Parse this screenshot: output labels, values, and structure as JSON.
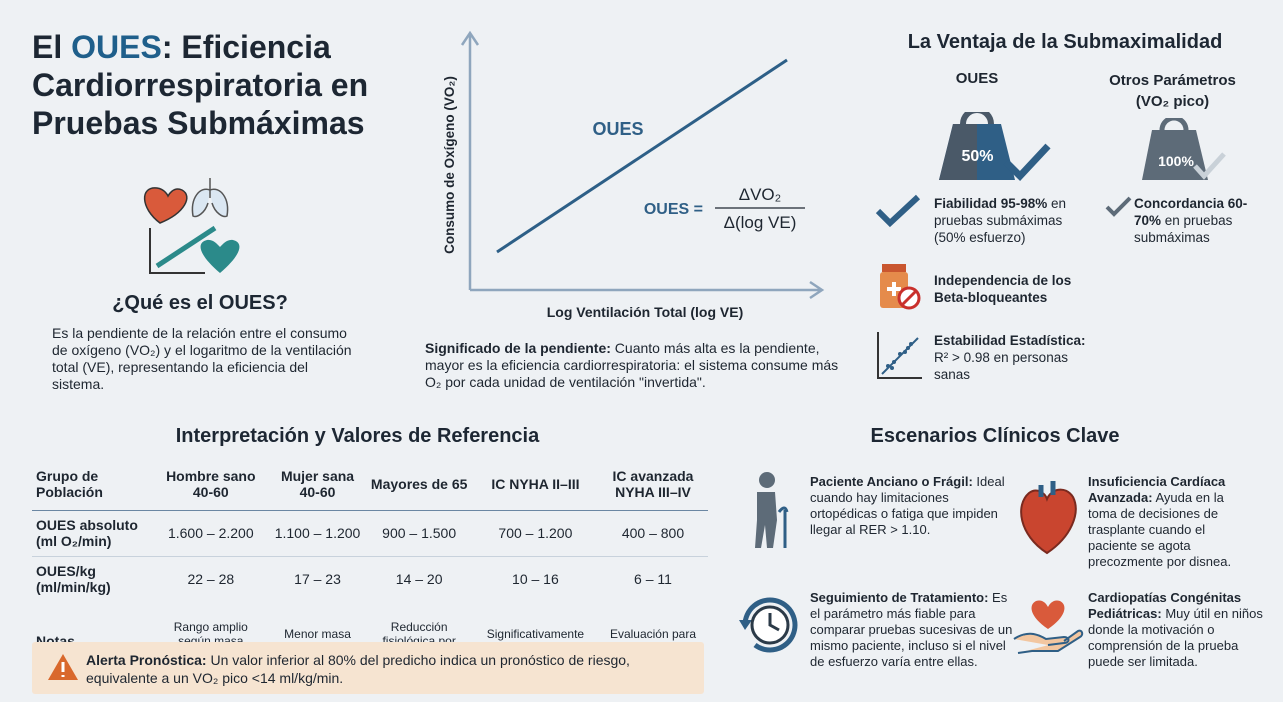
{
  "header": {
    "title_start": "El ",
    "title_highlight": "OUES",
    "title_end": ": Eficiencia Cardiorrespiratoria en Pruebas Submáximas"
  },
  "definition": {
    "heading": "¿Qué es el OUES?",
    "text": "Es la pendiente de la relación entre el consumo de oxígeno (VO₂) y el logaritmo de la ventilación total (VE), representando la eficiencia del sistema."
  },
  "graph": {
    "y_label": "Consumo de Oxígeno (VO₂)",
    "x_label": "Log Ventilación Total (log VE)",
    "line_label": "OUES",
    "formula_lhs": "OUES =",
    "formula_numerator": "ΔVO₂",
    "formula_denominator": "Δ(log VE)"
  },
  "slope_note": {
    "bold": "Significado de la pendiente:",
    "text": " Cuanto más alta es la pendiente, mayor es la eficiencia cardiorrespiratoria: el sistema consume más O₂ por cada unidad de ventilación \"invertida\"."
  },
  "advantage": {
    "title": "La Ventaja de la Submaximalidad",
    "columns": [
      {
        "heading": "OUES",
        "badge": "50%",
        "bold": "Fiabilidad 95-98%",
        "text": " en pruebas submáximas (50% esfuerzo)"
      },
      {
        "heading": "Otros Parámetros (VO₂ pico)",
        "badge": "100%",
        "bold": "Concordancia 60-70%",
        "text": " en pruebas submáximas"
      }
    ],
    "items": [
      {
        "bold": "Independencia",
        "text": " de los Beta-bloqueantes"
      },
      {
        "bold": "Estabilidad Estadística:",
        "text": " R² > 0.98 en personas sanas"
      }
    ]
  },
  "table": {
    "title": "Interpretación y Valores de Referencia",
    "headers": [
      "Grupo de Población",
      "Hombre sano 40-60",
      "Mujer sana 40-60",
      "Mayores de 65",
      "IC NYHA II–III",
      "IC avanzada NYHA III–IV"
    ],
    "rows": [
      [
        "OUES absoluto (ml O₂/min)",
        "1.600 – 2.200",
        "1.100 – 1.200",
        "900 – 1.500",
        "700 – 1.200",
        "400 – 800"
      ],
      [
        "OUES/kg (ml/min/kg)",
        "22 – 28",
        "17 – 23",
        "14 – 20",
        "10 – 16",
        "6 – 11"
      ],
      [
        "Notas",
        "Rango amplio según masa muscular",
        "Menor masa muscular y Hb",
        "Reducción fisiológica por edad",
        "Significativamente reducido",
        "Evaluación para trasplante"
      ]
    ],
    "alert": {
      "bold": "Alerta Pronóstica:",
      "text": " Un valor inferior al 80% del predicho indica un pronóstico de riesgo, equivalente a un VO₂ pico <14 ml/kg/min."
    }
  },
  "scenarios": {
    "title": "Escenarios Clínicos Clave",
    "items": [
      {
        "bold": "Paciente Anciano o Frágil:",
        "text": " Ideal cuando hay limitaciones ortopédicas o fatiga que impiden llegar al RER > 1.10."
      },
      {
        "bold": "Insuficiencia Cardíaca Avanzada:",
        "text": " Ayuda en la toma de decisiones de trasplante cuando el paciente se agota precozmente por disnea."
      },
      {
        "bold": "Seguimiento de Tratamiento:",
        "text": " Es el parámetro más fiable para comparar pruebas sucesivas de un mismo paciente, incluso si el nivel de esfuerzo varía entre ellas."
      },
      {
        "bold": "Cardiopatías Congénitas Pediátricas:",
        "text": " Muy útil en niños donde la motivación o comprensión de la prueba puede ser limitada."
      }
    ]
  }
}
